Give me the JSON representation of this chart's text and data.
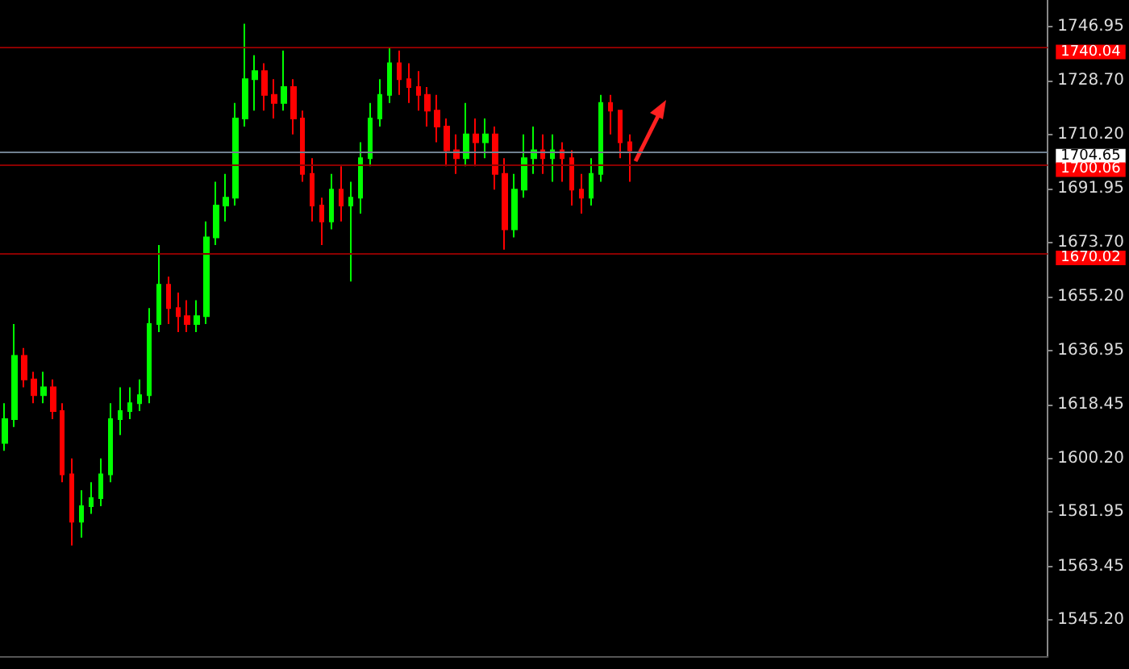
{
  "chart_data": {
    "type": "candlestick",
    "categories": [
      null,
      null,
      null,
      null,
      null,
      null,
      null,
      null,
      null,
      null,
      null,
      null,
      null,
      null,
      null,
      null,
      null,
      null,
      null,
      null,
      null,
      null,
      null,
      null,
      null,
      null,
      null,
      null,
      null,
      null,
      null,
      null,
      null,
      null,
      null,
      null,
      null,
      null,
      null,
      null,
      null,
      null,
      null,
      null,
      null,
      null,
      null,
      null,
      null,
      null,
      null,
      null,
      null,
      null,
      null,
      null,
      null,
      null,
      null,
      null,
      null,
      null,
      null,
      null,
      null,
      null,
      null,
      null,
      null,
      null,
      null,
      null,
      null,
      null,
      null,
      null,
      null,
      null,
      null,
      null,
      null,
      null,
      null,
      null,
      null,
      null,
      null,
      null,
      null,
      null,
      null,
      null,
      null,
      null,
      null,
      null,
      null,
      null,
      null,
      null,
      null,
      null,
      null,
      null,
      null,
      null,
      null,
      null,
      null
    ],
    "ohlc": [
      [
        1605.5,
        1619.0,
        1602.8,
        1613.6
      ],
      [
        1613.6,
        1645.9,
        1610.9,
        1635.1
      ],
      [
        1635.1,
        1637.8,
        1624.4,
        1627.1
      ],
      [
        1627.1,
        1629.7,
        1619.0,
        1621.7
      ],
      [
        1621.7,
        1629.7,
        1619.0,
        1624.4
      ],
      [
        1624.4,
        1627.1,
        1613.6,
        1616.3
      ],
      [
        1616.3,
        1619.0,
        1592.1,
        1594.8
      ],
      [
        1594.8,
        1600.2,
        1570.6,
        1578.7
      ],
      [
        1578.7,
        1589.4,
        1573.3,
        1584.0
      ],
      [
        1584.0,
        1592.1,
        1581.4,
        1586.7
      ],
      [
        1586.7,
        1600.2,
        1584.0,
        1594.8
      ],
      [
        1594.8,
        1619.0,
        1592.1,
        1613.6
      ],
      [
        1613.6,
        1624.4,
        1608.2,
        1616.3
      ],
      [
        1616.3,
        1624.4,
        1613.6,
        1619.0
      ],
      [
        1619.0,
        1627.1,
        1616.3,
        1621.7
      ],
      [
        1621.7,
        1651.3,
        1619.0,
        1645.9
      ],
      [
        1645.9,
        1672.8,
        1643.2,
        1659.3
      ],
      [
        1659.3,
        1662.0,
        1645.9,
        1651.3
      ],
      [
        1651.3,
        1656.6,
        1643.2,
        1648.6
      ],
      [
        1648.6,
        1654.0,
        1643.2,
        1645.9
      ],
      [
        1645.9,
        1654.0,
        1643.2,
        1648.6
      ],
      [
        1648.6,
        1680.8,
        1645.9,
        1675.4
      ],
      [
        1675.4,
        1694.3,
        1672.8,
        1686.2
      ],
      [
        1686.2,
        1697.0,
        1680.8,
        1688.9
      ],
      [
        1688.9,
        1721.1,
        1686.2,
        1715.8
      ],
      [
        1715.8,
        1748.0,
        1713.1,
        1729.2
      ],
      [
        1729.2,
        1737.3,
        1718.5,
        1731.9
      ],
      [
        1731.9,
        1734.6,
        1718.5,
        1723.8
      ],
      [
        1723.8,
        1729.2,
        1715.8,
        1721.1
      ],
      [
        1721.1,
        1738.9,
        1718.5,
        1726.5
      ],
      [
        1726.5,
        1729.2,
        1710.4,
        1715.8
      ],
      [
        1715.8,
        1718.5,
        1694.3,
        1697.0
      ],
      [
        1697.0,
        1702.3,
        1680.8,
        1686.2
      ],
      [
        1686.2,
        1688.9,
        1672.8,
        1680.8
      ],
      [
        1680.8,
        1697.0,
        1678.1,
        1691.6
      ],
      [
        1691.6,
        1699.6,
        1680.8,
        1686.2
      ],
      [
        1686.2,
        1694.3,
        1660.4,
        1688.9
      ],
      [
        1688.9,
        1707.7,
        1683.5,
        1702.3
      ],
      [
        1702.3,
        1721.1,
        1699.6,
        1715.8
      ],
      [
        1715.8,
        1729.2,
        1713.1,
        1723.8
      ],
      [
        1723.8,
        1740.0,
        1721.1,
        1734.6
      ],
      [
        1734.6,
        1738.9,
        1723.8,
        1729.2
      ],
      [
        1729.2,
        1734.6,
        1721.1,
        1726.5
      ],
      [
        1726.5,
        1731.9,
        1718.5,
        1723.8
      ],
      [
        1723.8,
        1726.5,
        1713.1,
        1718.5
      ],
      [
        1718.5,
        1723.8,
        1707.7,
        1713.1
      ],
      [
        1713.1,
        1715.8,
        1699.6,
        1705.0
      ],
      [
        1705.0,
        1710.4,
        1697.0,
        1702.3
      ],
      [
        1702.3,
        1721.1,
        1699.6,
        1710.4
      ],
      [
        1710.4,
        1715.8,
        1699.6,
        1707.7
      ],
      [
        1707.7,
        1715.8,
        1702.3,
        1710.4
      ],
      [
        1710.4,
        1713.1,
        1691.6,
        1697.0
      ],
      [
        1697.0,
        1702.3,
        1671.2,
        1678.1
      ],
      [
        1678.1,
        1697.0,
        1675.4,
        1691.6
      ],
      [
        1691.6,
        1710.4,
        1688.9,
        1702.3
      ],
      [
        1702.3,
        1713.1,
        1697.0,
        1705.0
      ],
      [
        1705.0,
        1710.4,
        1697.0,
        1702.3
      ],
      [
        1702.3,
        1710.4,
        1694.3,
        1705.0
      ],
      [
        1705.0,
        1707.7,
        1694.3,
        1702.3
      ],
      [
        1702.3,
        1705.0,
        1686.2,
        1691.6
      ],
      [
        1691.6,
        1697.0,
        1683.5,
        1688.9
      ],
      [
        1688.9,
        1702.3,
        1686.2,
        1697.0
      ],
      [
        1697.0,
        1723.8,
        1694.3,
        1721.1
      ],
      [
        1721.1,
        1723.8,
        1710.4,
        1718.5
      ],
      [
        1718.5,
        1718.5,
        1702.3,
        1707.7
      ],
      [
        1707.7,
        1710.4,
        1694.3,
        1705.0
      ],
      null,
      null,
      null,
      null,
      null,
      null,
      null,
      null,
      null,
      null,
      null,
      null,
      null,
      null,
      null,
      null,
      null,
      null,
      null,
      null,
      null,
      null,
      null,
      null,
      null,
      null,
      null,
      null,
      null,
      null,
      null,
      null,
      null,
      null,
      null,
      null,
      null,
      null,
      null,
      null,
      null,
      null,
      null
    ],
    "ylim": [
      1533.0,
      1756.1
    ],
    "yticks": [
      {
        "value": 1545.2,
        "label": "1545.20"
      },
      {
        "value": 1563.45,
        "label": "1563.45"
      },
      {
        "value": 1581.95,
        "label": "1581.95"
      },
      {
        "value": 1600.2,
        "label": "1600.20"
      },
      {
        "value": 1618.45,
        "label": "1618.45"
      },
      {
        "value": 1636.95,
        "label": "1636.95"
      },
      {
        "value": 1655.2,
        "label": "1655.20"
      },
      {
        "value": 1673.7,
        "label": "1673.70"
      },
      {
        "value": 1691.95,
        "label": "1691.95"
      },
      {
        "value": 1710.2,
        "label": "1710.20"
      },
      {
        "value": 1728.7,
        "label": "1728.70"
      },
      {
        "value": 1746.95,
        "label": "1746.95"
      }
    ],
    "ref_lines": [
      {
        "axis": "y",
        "value": 1740.04,
        "label": "1740.04",
        "color": "#8b0000"
      },
      {
        "axis": "y",
        "value": 1704.65,
        "label": "1704.65",
        "color": "#708090"
      },
      {
        "axis": "y",
        "value": 1700.06,
        "label": "1700.06",
        "color": "#8b0000"
      },
      {
        "axis": "y",
        "value": 1670.02,
        "label": "1670.02",
        "color": "#8b0000"
      }
    ],
    "grid": false
  }
}
